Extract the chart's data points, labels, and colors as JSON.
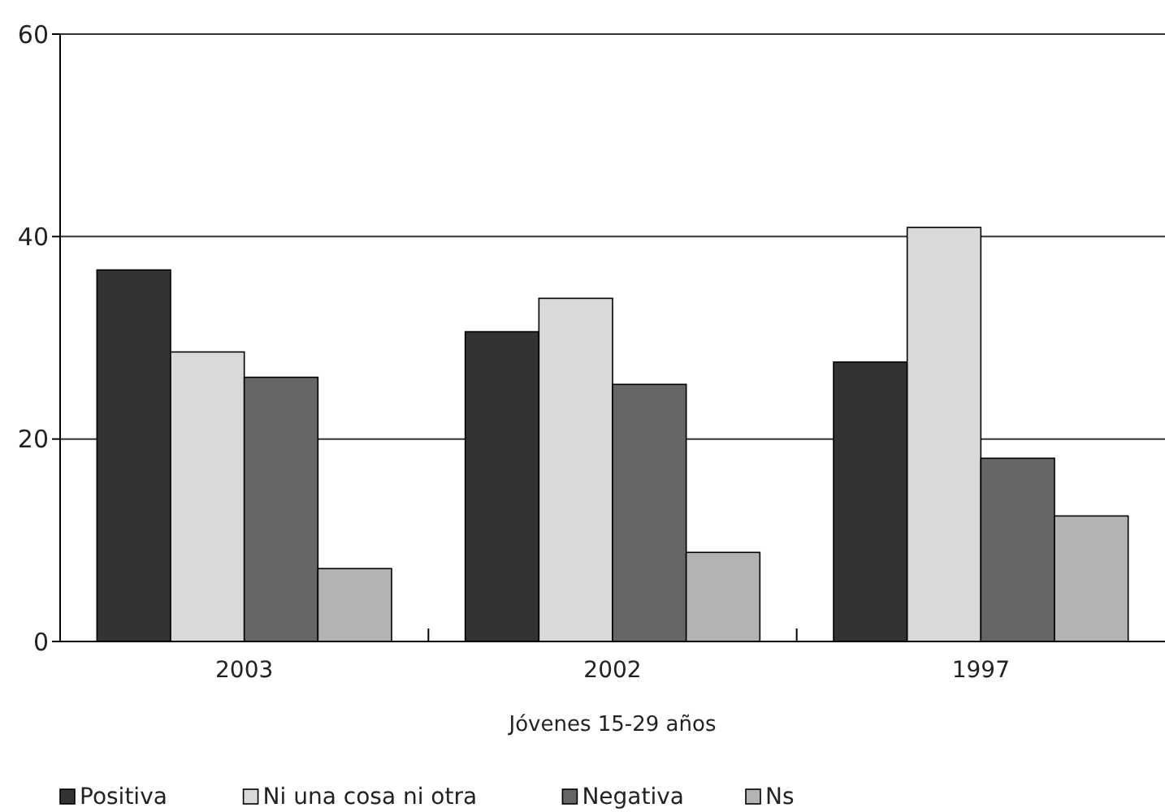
{
  "chart_data": {
    "type": "bar",
    "xlabel": "Jóvenes 15-29 años",
    "categories": [
      "2003",
      "2002",
      "1997"
    ],
    "series": [
      {
        "name": "Positiva",
        "color": "#333333",
        "values": [
          36.7,
          30.6,
          27.6
        ]
      },
      {
        "name": "Ni una cosa ni otra",
        "color": "#d9d9d9",
        "values": [
          28.6,
          33.9,
          40.9
        ]
      },
      {
        "name": "Negativa",
        "color": "#666666",
        "values": [
          26.1,
          25.4,
          18.1
        ]
      },
      {
        "name": "Ns",
        "color": "#b3b3b3",
        "values": [
          7.2,
          8.8,
          12.4
        ]
      }
    ],
    "ylim": [
      0,
      60
    ],
    "yticks": [
      0,
      20,
      40,
      60
    ],
    "grid": "y",
    "legend": "bottom left"
  }
}
